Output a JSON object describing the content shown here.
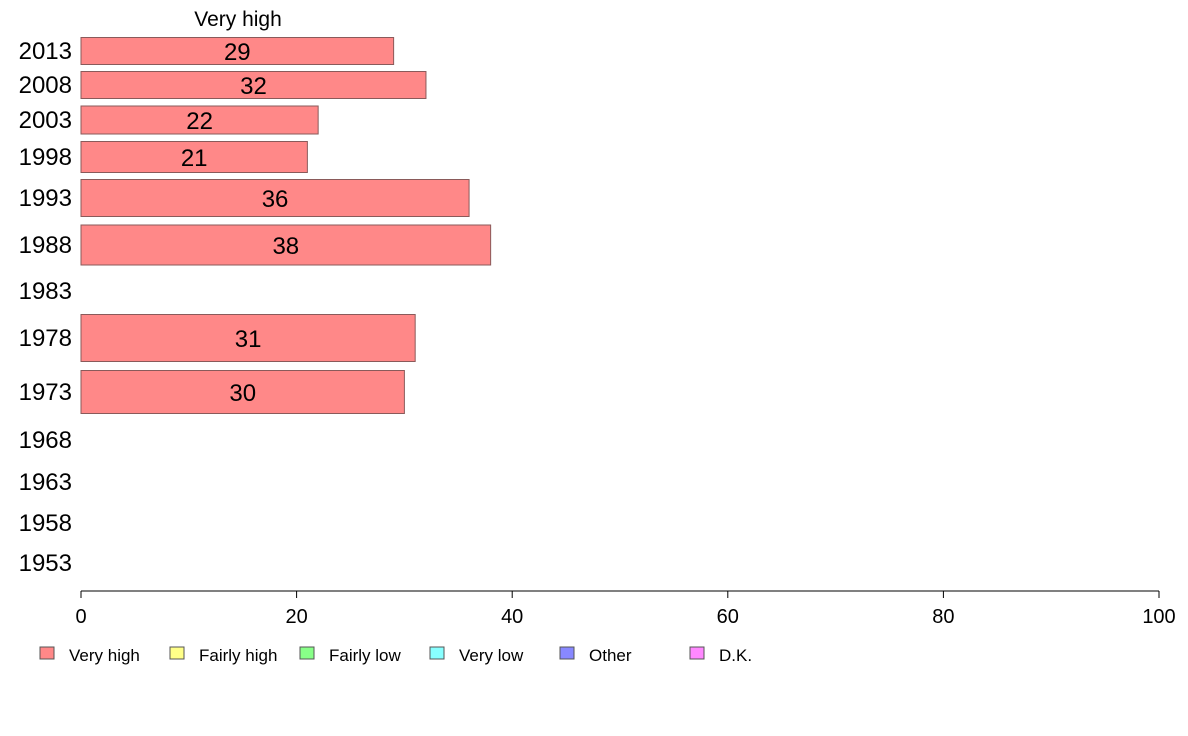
{
  "chart_data": {
    "type": "bar",
    "orientation": "horizontal",
    "stacked": true,
    "categories": [
      "2013",
      "2008",
      "2003",
      "1998",
      "1993",
      "1988",
      "1983",
      "1978",
      "1973",
      "1968",
      "1963",
      "1958",
      "1953"
    ],
    "series": [
      {
        "name": "Very high",
        "color": "#ff8888",
        "values": [
          29,
          32,
          22,
          21,
          36,
          38,
          null,
          31,
          30,
          null,
          null,
          null,
          null
        ]
      },
      {
        "name": "Fairly high",
        "color": "#ffff88",
        "values": [
          null,
          null,
          null,
          null,
          null,
          null,
          null,
          null,
          null,
          null,
          null,
          null,
          null
        ]
      },
      {
        "name": "Fairly low",
        "color": "#88ff88",
        "values": [
          null,
          null,
          null,
          null,
          null,
          null,
          null,
          null,
          null,
          null,
          null,
          null,
          null
        ]
      },
      {
        "name": "Very low",
        "color": "#88ffff",
        "values": [
          null,
          null,
          null,
          null,
          null,
          null,
          null,
          null,
          null,
          null,
          null,
          null,
          null
        ]
      },
      {
        "name": "Other",
        "color": "#8888ff",
        "values": [
          null,
          null,
          null,
          null,
          null,
          null,
          null,
          null,
          null,
          null,
          null,
          null,
          null
        ]
      },
      {
        "name": "D.K.",
        "color": "#ff88ff",
        "values": [
          null,
          null,
          null,
          null,
          null,
          null,
          null,
          null,
          null,
          null,
          null,
          null,
          null
        ]
      }
    ],
    "series_header": "Very high",
    "xlim": [
      0,
      100
    ],
    "xticks": [
      0,
      20,
      40,
      60,
      80,
      100
    ],
    "grid": false,
    "legend_position": "bottom"
  }
}
